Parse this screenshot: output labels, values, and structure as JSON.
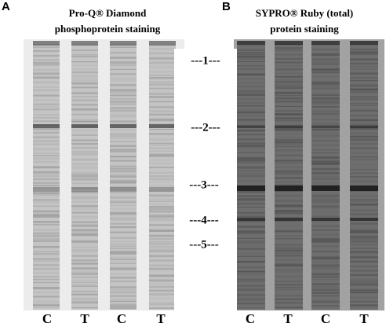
{
  "panel_a": {
    "letter": "A",
    "title_lines": [
      "Pro-Q® Diamond",
      "phosphoprotein staining"
    ],
    "lanes": [
      "C",
      "T",
      "C",
      "T"
    ]
  },
  "panel_b": {
    "letter": "B",
    "title_lines": [
      "SYPRO® Ruby (total)",
      "protein  staining"
    ],
    "lanes": [
      "C",
      "T",
      "C",
      "T"
    ]
  },
  "markers": [
    "---1---",
    "---2---",
    "---3---",
    "---4---",
    "---5---"
  ]
}
